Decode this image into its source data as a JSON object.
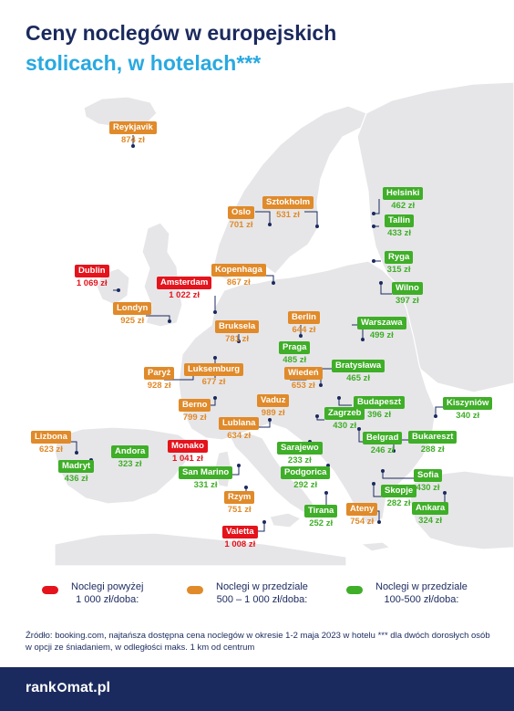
{
  "title": {
    "line1": "Ceny noclegów w europejskich",
    "line2": "stolicach, w hotelach***"
  },
  "colors": {
    "red": "#e5131c",
    "orange": "#e08a2a",
    "green": "#3fae28",
    "navy": "#1b2a5e",
    "cyan": "#29a9e1",
    "land": "#e6e6e8"
  },
  "cities": [
    {
      "name": "Reykjavik",
      "price": "874 zł",
      "cat": "orange"
    },
    {
      "name": "Oslo",
      "price": "701 zł",
      "cat": "orange"
    },
    {
      "name": "Sztokholm",
      "price": "531 zł",
      "cat": "orange"
    },
    {
      "name": "Helsinki",
      "price": "462 zł",
      "cat": "green"
    },
    {
      "name": "Tallin",
      "price": "433 zł",
      "cat": "green"
    },
    {
      "name": "Ryga",
      "price": "315 zł",
      "cat": "green"
    },
    {
      "name": "Wilno",
      "price": "397 zł",
      "cat": "green"
    },
    {
      "name": "Dublin",
      "price": "1 069 zł",
      "cat": "red"
    },
    {
      "name": "Amsterdam",
      "price": "1 022 zł",
      "cat": "red"
    },
    {
      "name": "Kopenhaga",
      "price": "867 zł",
      "cat": "orange"
    },
    {
      "name": "Londyn",
      "price": "925 zł",
      "cat": "orange"
    },
    {
      "name": "Berlin",
      "price": "644 zł",
      "cat": "orange"
    },
    {
      "name": "Warszawa",
      "price": "499 zł",
      "cat": "green"
    },
    {
      "name": "Bruksela",
      "price": "781 zł",
      "cat": "orange"
    },
    {
      "name": "Praga",
      "price": "485 zł",
      "cat": "green"
    },
    {
      "name": "Paryż",
      "price": "928 zł",
      "cat": "orange"
    },
    {
      "name": "Luksemburg",
      "price": "677 zł",
      "cat": "orange"
    },
    {
      "name": "Wiedeń",
      "price": "653 zł",
      "cat": "orange"
    },
    {
      "name": "Bratysława",
      "price": "465 zł",
      "cat": "green"
    },
    {
      "name": "Berno",
      "price": "799 zł",
      "cat": "orange"
    },
    {
      "name": "Vaduz",
      "price": "989 zł",
      "cat": "orange"
    },
    {
      "name": "Budapeszt",
      "price": "396 zł",
      "cat": "green"
    },
    {
      "name": "Kiszyniów",
      "price": "340 zł",
      "cat": "green"
    },
    {
      "name": "Zagrzeb",
      "price": "430 zł",
      "cat": "green"
    },
    {
      "name": "Lublana",
      "price": "634 zł",
      "cat": "orange"
    },
    {
      "name": "Lizbona",
      "price": "623 zł",
      "cat": "orange"
    },
    {
      "name": "Monako",
      "price": "1 041 zł",
      "cat": "red"
    },
    {
      "name": "Andora",
      "price": "323 zł",
      "cat": "green"
    },
    {
      "name": "Belgrad",
      "price": "246 zł",
      "cat": "green"
    },
    {
      "name": "Bukareszt",
      "price": "288 zł",
      "cat": "green"
    },
    {
      "name": "Sarajewo",
      "price": "233 zł",
      "cat": "green"
    },
    {
      "name": "Madryt",
      "price": "436 zł",
      "cat": "green"
    },
    {
      "name": "San Marino",
      "price": "331 zł",
      "cat": "green"
    },
    {
      "name": "Podgorica",
      "price": "292 zł",
      "cat": "green"
    },
    {
      "name": "Sofia",
      "price": "430 zł",
      "cat": "green"
    },
    {
      "name": "Skopje",
      "price": "282 zł",
      "cat": "green"
    },
    {
      "name": "Rzym",
      "price": "751 zł",
      "cat": "orange"
    },
    {
      "name": "Ankara",
      "price": "324 zł",
      "cat": "green"
    },
    {
      "name": "Tirana",
      "price": "252 zł",
      "cat": "green"
    },
    {
      "name": "Ateny",
      "price": "754 zł",
      "cat": "orange"
    },
    {
      "name": "Valetta",
      "price": "1 008 zł",
      "cat": "red"
    }
  ],
  "legend": {
    "red": {
      "line1": "Noclegi powyżej",
      "line2": "1 000 zł/doba:"
    },
    "orange": {
      "line1": "Noclegi w przedziale",
      "line2": "500 – 1 000 zł/doba:"
    },
    "green": {
      "line1": "Noclegi w przedziale",
      "line2": "100-500 zł/doba:"
    }
  },
  "source": "Źródło: booking.com, najtańsza dostępna cena noclegów w okresie 1-2 maja 2023 w hotelu *** dla dwóch dorosłych osób w opcji ze śniadaniem, w odległości maks. 1 km od centrum",
  "logo": {
    "left": "rank",
    "right": "mat.pl"
  }
}
